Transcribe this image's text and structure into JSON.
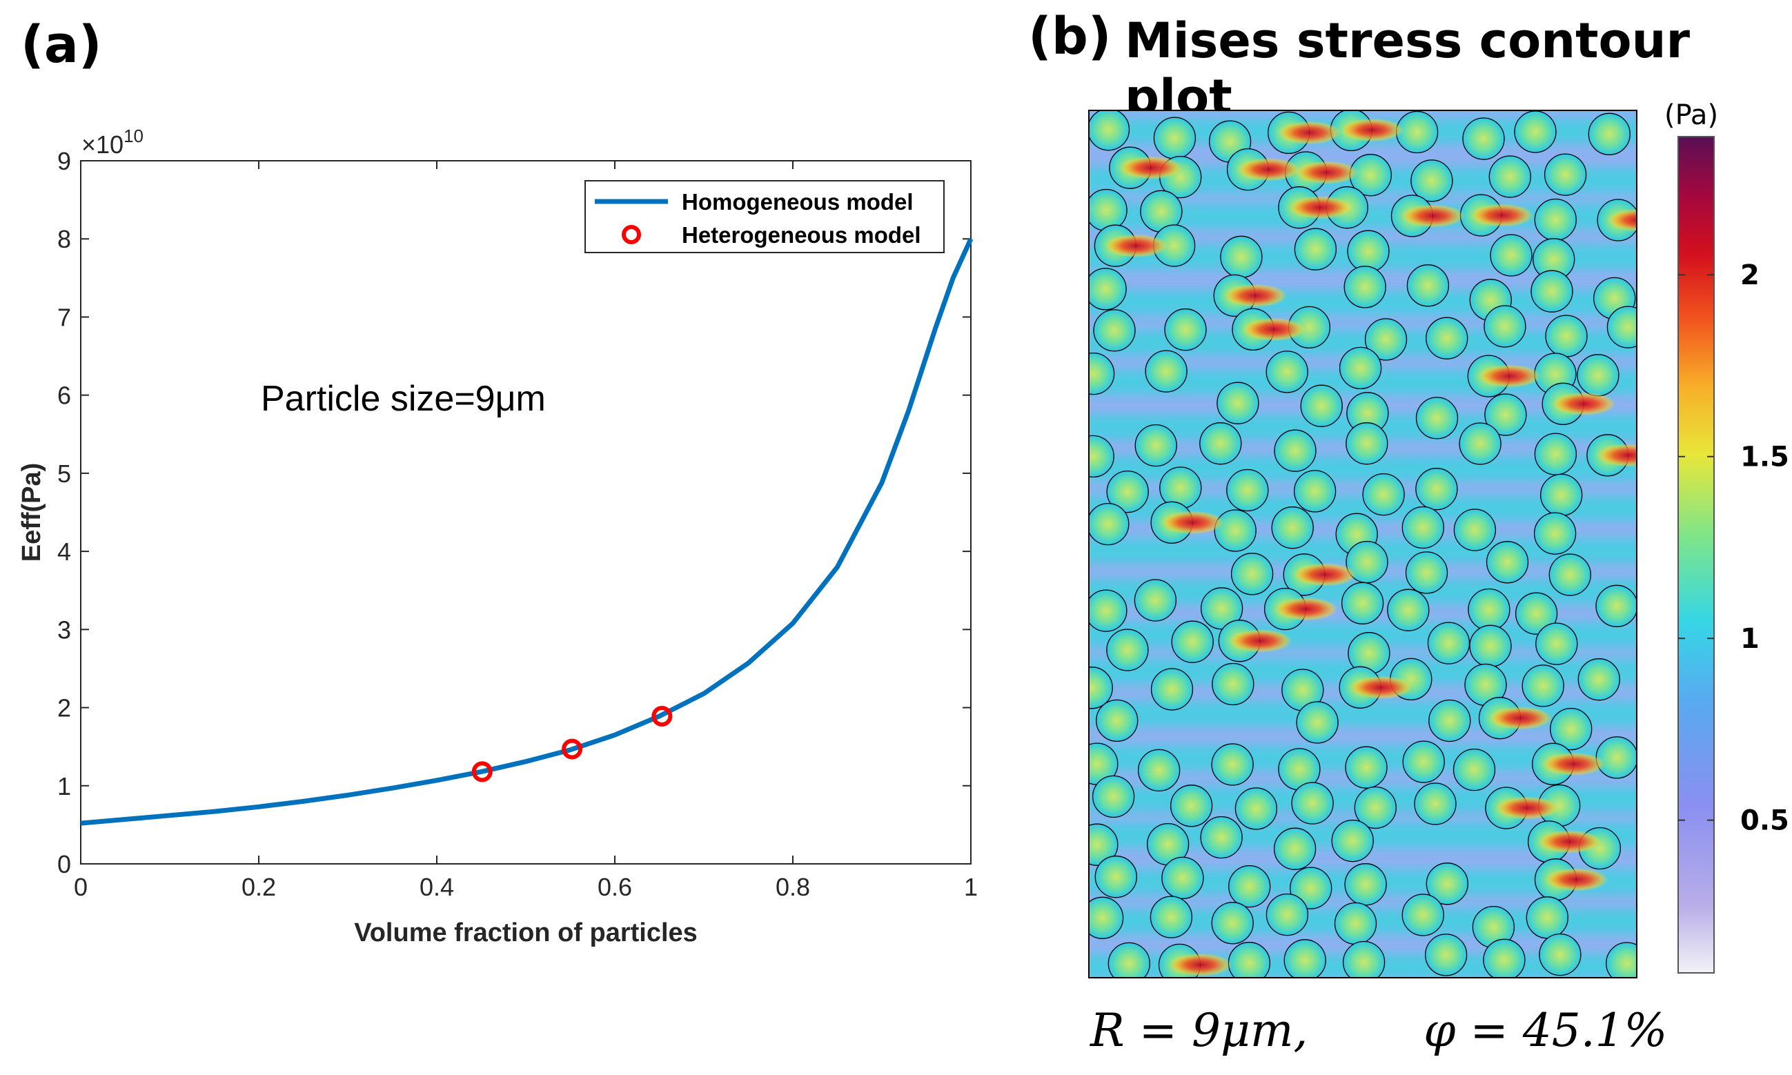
{
  "panel_a": {
    "label": "(a)",
    "exponent": "×10",
    "exponent_power": "10",
    "annotation": "Particle size=9μm"
  },
  "panel_b": {
    "label": "(b)",
    "title": "Mises stress contour plot",
    "caption_r": "R = 9μm,",
    "caption_phi": "φ = 45.1%",
    "colorbar_unit": "(Pa)",
    "colorbar_ticks": [
      {
        "value": 0.5,
        "label": "0.5"
      },
      {
        "value": 1,
        "label": "1"
      },
      {
        "value": 1.5,
        "label": "1.5"
      },
      {
        "value": 2,
        "label": "2"
      }
    ],
    "colorbar_range": [
      0.08,
      2.38
    ]
  },
  "colors": {
    "line": "#0072BD",
    "marker": "#FF0000",
    "bg_field": "#8fb0f0"
  },
  "chart_data": [
    {
      "type": "line",
      "title": "",
      "xlabel": "Volume fraction of particles",
      "ylabel": "Eeff(Pa)",
      "xlim": [
        0,
        1
      ],
      "ylim": [
        0,
        90000000000
      ],
      "x_ticks": [
        0,
        0.2,
        0.4,
        0.6,
        0.8,
        1
      ],
      "x_tick_labels": [
        "0",
        "0.2",
        "0.4",
        "0.6",
        "0.8",
        "1"
      ],
      "y_ticks": [
        0,
        10000000000.0,
        20000000000.0,
        30000000000.0,
        40000000000.0,
        50000000000.0,
        60000000000.0,
        70000000000.0,
        80000000000.0,
        90000000000.0
      ],
      "y_tick_labels": [
        "0",
        "1",
        "2",
        "3",
        "4",
        "5",
        "6",
        "7",
        "8",
        "9"
      ],
      "legend_position": "top-right",
      "series": [
        {
          "name": "Homogeneous model",
          "style": "line",
          "x": [
            0,
            0.05,
            0.1,
            0.15,
            0.2,
            0.25,
            0.3,
            0.35,
            0.4,
            0.45,
            0.5,
            0.55,
            0.6,
            0.65,
            0.7,
            0.75,
            0.8,
            0.85,
            0.9,
            0.93,
            0.96,
            0.98,
            1.0
          ],
          "y": [
            5200000000.0,
            5700000000.0,
            6200000000.0,
            6700000000.0,
            7300000000.0,
            8000000000.0,
            8800000000.0,
            9700000000.0,
            10700000000.0,
            11800000000.0,
            13100000000.0,
            14600000000.0,
            16500000000.0,
            18900000000.0,
            21800000000.0,
            25700000000.0,
            30800000000.0,
            38000000000.0,
            48800000000.0,
            58000000000.0,
            68500000000.0,
            75000000000.0,
            80000000000.0
          ]
        },
        {
          "name": "Heterogeneous model",
          "style": "marker",
          "x": [
            0.451,
            0.552,
            0.653
          ],
          "y": [
            11800000000.0,
            14700000000.0,
            18900000000.0
          ]
        }
      ]
    },
    {
      "type": "heatmap",
      "title": "Mises stress contour plot",
      "xlabel": "",
      "ylabel": "",
      "colorbar_label": "(Pa)",
      "value_range": [
        0.08,
        2.38
      ],
      "particle_radius": "9μm",
      "volume_fraction": "45.1%"
    }
  ]
}
